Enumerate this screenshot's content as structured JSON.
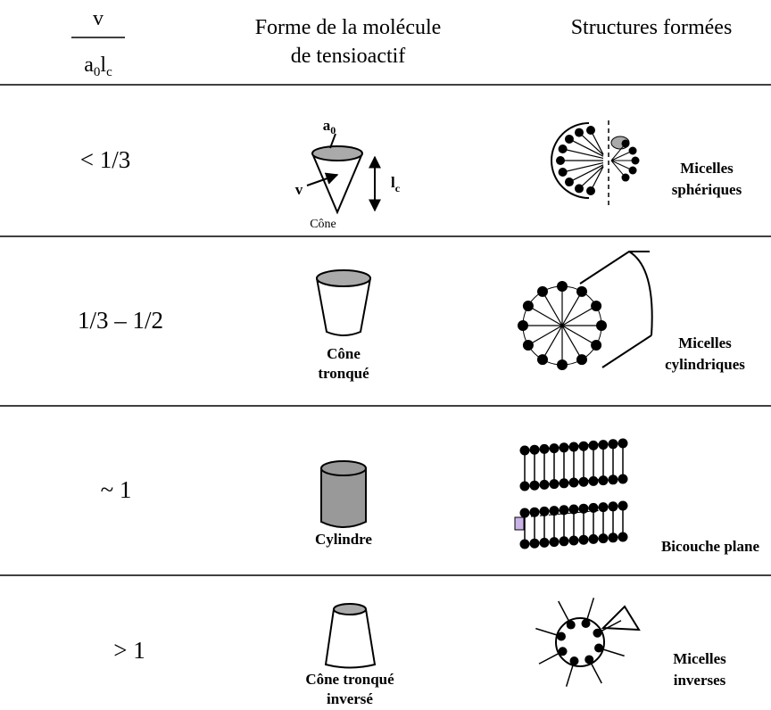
{
  "header": {
    "ratio": {
      "numerator": "v",
      "denominator": [
        "a",
        "0",
        "l",
        "c"
      ]
    },
    "shape_column": [
      "Forme de la molécule",
      "de tensioactif"
    ],
    "structure_column": "Structures formées"
  },
  "rows": [
    {
      "ratio": "< 1/3",
      "shape_labels": {
        "area": [
          "a",
          "0"
        ],
        "volume": "v",
        "length": [
          "l",
          "c"
        ]
      },
      "shape": [
        "Cône"
      ],
      "structure": [
        "Micelles",
        "sphériques"
      ]
    },
    {
      "ratio": "1/3 – 1/2",
      "shape": [
        "Cône",
        "tronqué"
      ],
      "structure": [
        "Micelles",
        "cylindriques"
      ]
    },
    {
      "ratio": "~ 1",
      "shape": [
        "Cylindre"
      ],
      "structure": [
        "Bicouche plane"
      ]
    },
    {
      "ratio": "> 1",
      "shape": [
        "Cône tronqué",
        "inversé"
      ],
      "structure": [
        "Micelles",
        "inverses"
      ]
    }
  ]
}
